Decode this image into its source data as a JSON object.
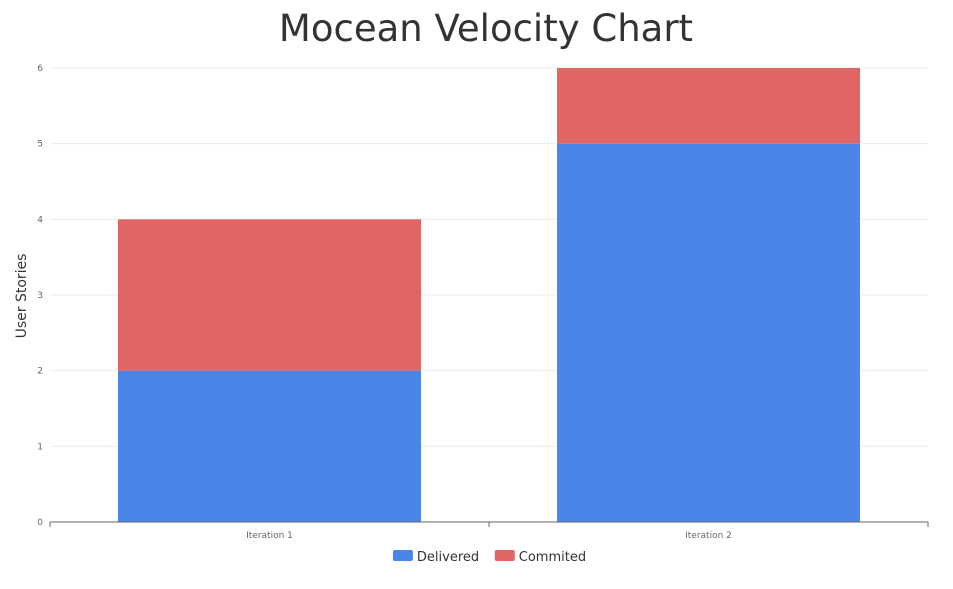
{
  "chart_data": {
    "type": "bar",
    "stacked": true,
    "title": "Mocean Velocity Chart",
    "xlabel": "",
    "ylabel": "User Stories",
    "categories": [
      "Iteration 1",
      "Iteration 2"
    ],
    "series": [
      {
        "name": "Delivered",
        "values": [
          2,
          5
        ],
        "color": "#4a86e8"
      },
      {
        "name": "Commited",
        "values": [
          2,
          1
        ],
        "color": "#e06666"
      }
    ],
    "ylim": [
      0,
      6
    ],
    "yticks": [
      0,
      1,
      2,
      3,
      4,
      5,
      6
    ],
    "grid": true,
    "legend_position": "bottom"
  }
}
